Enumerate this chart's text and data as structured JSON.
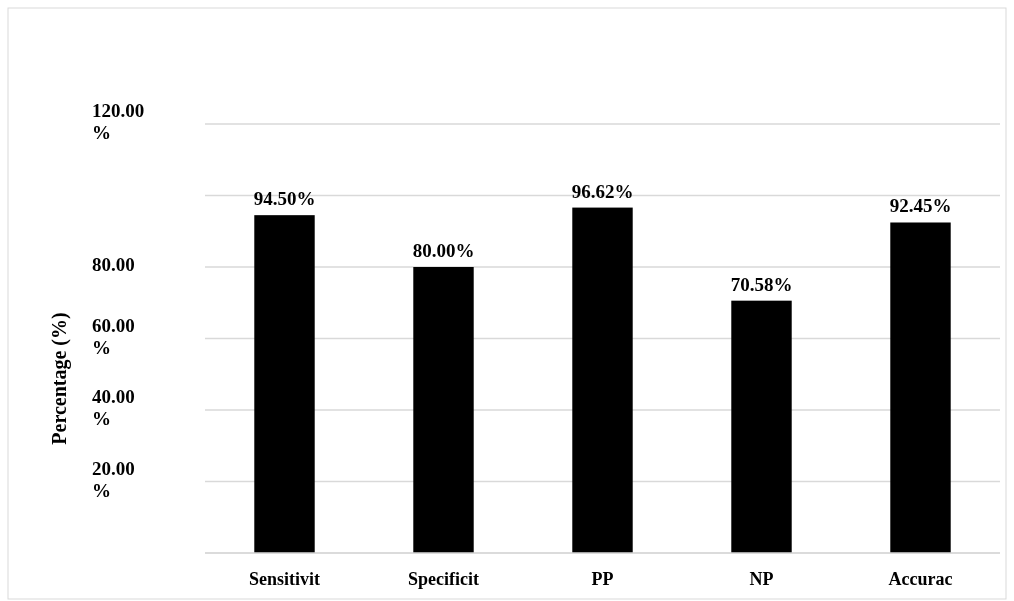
{
  "chart_data": {
    "type": "bar",
    "ylabel": "Percentage (%)",
    "categories": [
      "Sensitivit",
      "Specificit",
      "PP",
      "NP",
      "Accurac"
    ],
    "values": [
      94.5,
      80,
      96.62,
      70.58,
      92.45
    ],
    "value_labels": [
      "94.50%",
      "80.00%",
      "96.62%",
      "70.58%",
      "92.45%"
    ],
    "color": "#000000",
    "ylim": [
      0,
      120
    ],
    "yticks": [
      {
        "value": 0,
        "label": null
      },
      {
        "value": 20,
        "label": "20.00 %"
      },
      {
        "value": 40,
        "label": "40.00 %"
      },
      {
        "value": 60,
        "label": "60.00 %"
      },
      {
        "value": 80,
        "label": "80.00"
      },
      {
        "value": 100,
        "label": null
      },
      {
        "value": 120,
        "label": "120.00 %"
      }
    ],
    "grid": "y"
  }
}
